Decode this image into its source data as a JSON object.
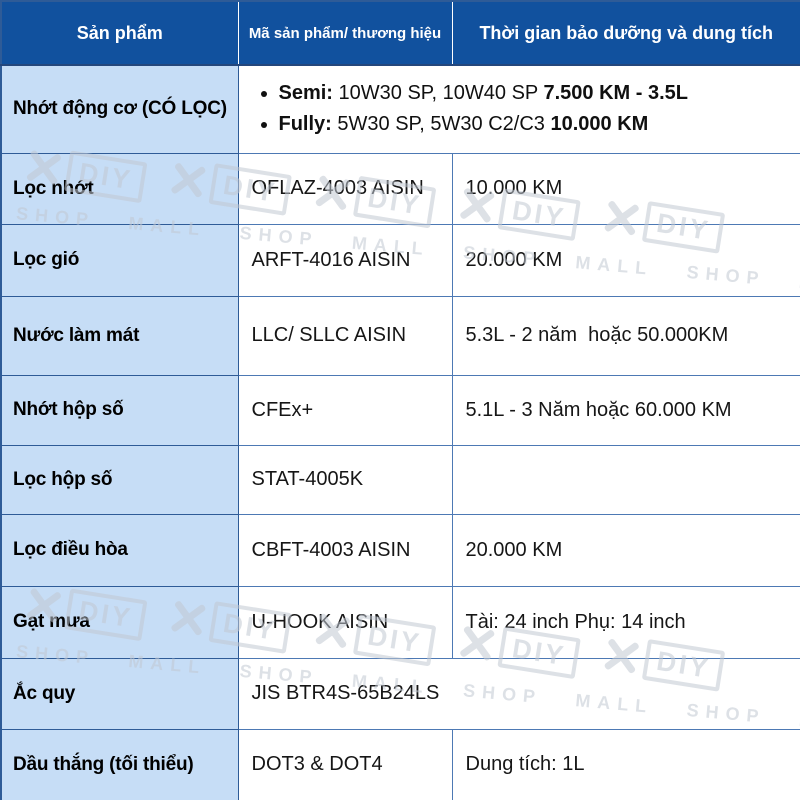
{
  "header": {
    "product": "Sản phẩm",
    "code": "Mã sản phẩm/ thương hiệu",
    "maintenance": "Thời gian bảo dưỡng và dung tích"
  },
  "engine_oil": {
    "product": "Nhớt động cơ (CÓ LỌC)",
    "semi_label": "Semi:",
    "semi_specs": " 10W30 SP, 10W40 SP ",
    "semi_interval": "7.500 KM - 3.5L",
    "fully_label": "Fully:",
    "fully_specs": " 5W30 SP, 5W30 C2/C3 ",
    "fully_interval": "10.000 KM"
  },
  "rows": [
    {
      "product": "Lọc nhớt",
      "code": "OFLAZ-4003 AISIN",
      "maintenance": "10.000 KM"
    },
    {
      "product": "Lọc gió",
      "code": "ARFT-4016 AISIN",
      "maintenance": "20.000 KM"
    },
    {
      "product": "Nước làm mát",
      "code": "LLC/ SLLC AISIN",
      "maintenance": "5.3L - 2 năm  hoặc 50.000KM"
    },
    {
      "product": "Nhớt hộp số",
      "code": "CFEx+",
      "maintenance": "5.1L - 3 Năm hoặc 60.000 KM"
    },
    {
      "product": "Lọc hộp số",
      "code": "STAT-4005K",
      "maintenance": ""
    },
    {
      "product": "Lọc điều hòa",
      "code": "CBFT-4003 AISIN",
      "maintenance": "20.000 KM"
    },
    {
      "product": "Gạt mưa",
      "code": "U-HOOK AISIN",
      "maintenance": "Tài: 24 inch Phụ: 14 inch"
    },
    {
      "product": "Ắc quy",
      "code": "JIS BTR4S-65B24LS"
    },
    {
      "product": "Dầu thắng (tối thiểu)",
      "code": "DOT3 & DOT4",
      "maintenance": "Dung tích: 1L"
    }
  ],
  "watermark": {
    "brand": "DIY",
    "tagline": "SHOP MALL SHOP MALL SHOP MALL SHOP MALL SHOP MALL"
  },
  "colors": {
    "header_bg": "#11519E",
    "header_text": "#FFFFFF",
    "product_col_bg": "#C6DDF6",
    "border_dark": "#2E5B97",
    "border_light": "#4D79B4",
    "body_text": "#161616",
    "watermark_gray": "#C2C9D3"
  }
}
